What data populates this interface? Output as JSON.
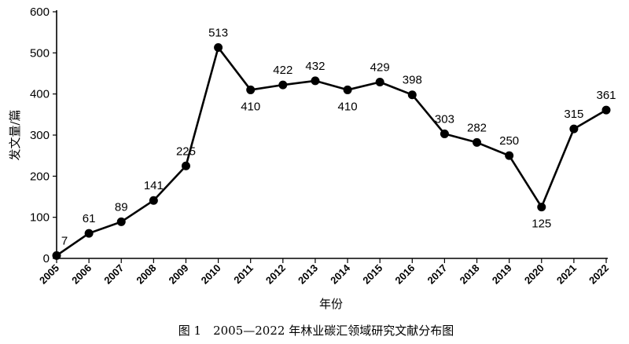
{
  "chart_data": {
    "type": "line",
    "title": "图 1　2005—2022 年林业碳汇领域研究文献分布图",
    "xlabel": "年份",
    "ylabel": "发文量/篇",
    "categories": [
      "2005",
      "2006",
      "2007",
      "2008",
      "2009",
      "2010",
      "2011",
      "2012",
      "2013",
      "2014",
      "2015",
      "2016",
      "2017",
      "2018",
      "2019",
      "2020",
      "2021",
      "2022"
    ],
    "values": [
      7,
      61,
      89,
      141,
      225,
      513,
      410,
      422,
      432,
      410,
      429,
      398,
      303,
      282,
      250,
      125,
      315,
      361
    ],
    "ylim": [
      0,
      600
    ],
    "yticks": [
      0,
      100,
      200,
      300,
      400,
      500,
      600
    ],
    "grid": false,
    "markers": true,
    "line_color": "#000000"
  }
}
